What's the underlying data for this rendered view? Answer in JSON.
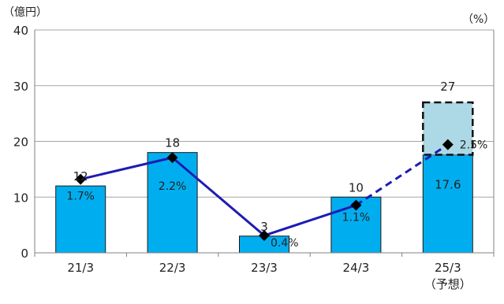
{
  "chart_data": {
    "type": "bar",
    "categories": [
      "21/3",
      "22/3",
      "23/3",
      "24/3",
      "25/3"
    ],
    "category_notes": [
      "",
      "",
      "",
      "",
      "（予想）"
    ],
    "left_unit": "（億円）",
    "right_unit": "（%）",
    "ylim": [
      0,
      40
    ],
    "yticks": [
      0,
      10,
      20,
      30,
      40
    ],
    "y2lim": [
      0,
      5.15
    ],
    "grid": true,
    "series": [
      {
        "type": "bar",
        "values": [
          12,
          18,
          3,
          10,
          17.6
        ],
        "labels": [
          "12",
          "18",
          "3",
          "10",
          "17.6"
        ]
      },
      {
        "type": "bar",
        "stacked_on": 0,
        "dashed_outline": true,
        "values": [
          0,
          0,
          0,
          0,
          9.4
        ],
        "total_labels": [
          "",
          "",
          "",
          "",
          "27"
        ]
      },
      {
        "type": "line",
        "axis": "right",
        "values": [
          1.7,
          2.2,
          0.4,
          1.1,
          2.5
        ],
        "labels": [
          "1.7%",
          "2.2%",
          "0.4%",
          "1.1%",
          "2.5%"
        ],
        "dashed_segments": [
          3
        ]
      }
    ],
    "colors": {
      "bar": "#00aeef",
      "forecast_fill": "#add8e6",
      "line": "#1c1cb4",
      "marker": "#000000",
      "grid": "#a6a6a6",
      "axis": "#808080"
    }
  }
}
